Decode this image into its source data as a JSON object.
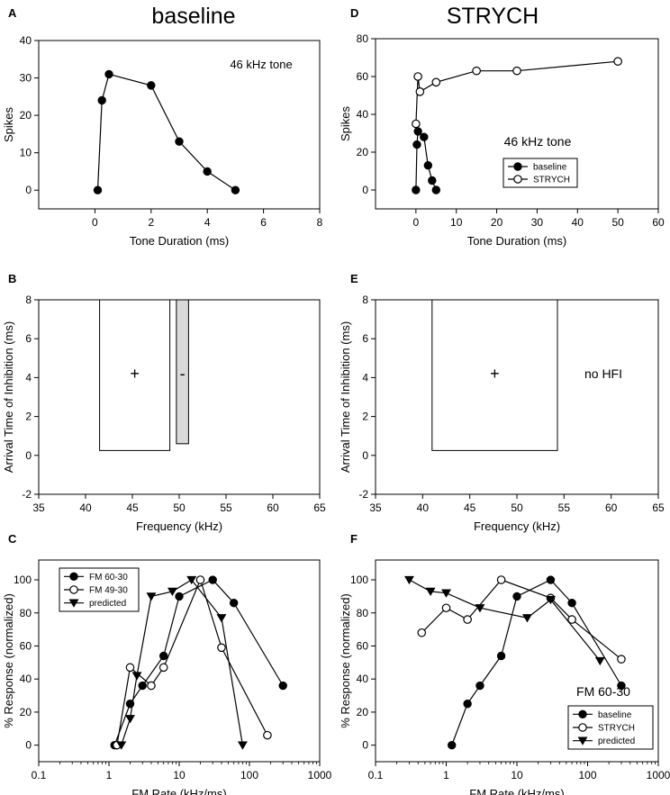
{
  "headers": {
    "left": "baseline",
    "right": "STRYCH"
  },
  "chart_data": [
    {
      "id": "A",
      "panel_label": "A",
      "type": "line",
      "xlabel": "Tone Duration (ms)",
      "ylabel": "Spikes",
      "xlim": [
        -2,
        8
      ],
      "ylim": [
        -5,
        40
      ],
      "xticks": [
        0,
        2,
        4,
        6,
        8
      ],
      "yticks": [
        0,
        10,
        20,
        30,
        40
      ],
      "annotation": "46 kHz tone",
      "series": [
        {
          "name": "baseline",
          "marker": "filled-circle",
          "x": [
            0.1,
            0.25,
            0.5,
            2,
            3,
            4,
            5
          ],
          "y": [
            0,
            24,
            31,
            28,
            13,
            5,
            0
          ]
        }
      ]
    },
    {
      "id": "D",
      "panel_label": "D",
      "type": "line",
      "xlabel": "Tone Duration (ms)",
      "ylabel": "Spikes",
      "xlim": [
        -10,
        60
      ],
      "ylim": [
        -10,
        80
      ],
      "xticks": [
        0,
        10,
        20,
        30,
        40,
        50,
        60
      ],
      "yticks": [
        0,
        20,
        40,
        60,
        80
      ],
      "annotation": "46 kHz tone",
      "legend": [
        "baseline",
        "STRYCH"
      ],
      "series": [
        {
          "name": "baseline",
          "marker": "filled-circle",
          "x": [
            0,
            0.25,
            0.5,
            2,
            3,
            4,
            5
          ],
          "y": [
            0,
            24,
            31,
            28,
            13,
            5,
            0
          ]
        },
        {
          "name": "STRYCH",
          "marker": "open-circle",
          "x": [
            0,
            0.5,
            1,
            5,
            15,
            25,
            50
          ],
          "y": [
            35,
            60,
            52,
            57,
            63,
            63,
            68
          ]
        }
      ]
    },
    {
      "id": "B",
      "panel_label": "B",
      "type": "rect",
      "xlabel": "Frequency (kHz)",
      "ylabel": "Arrival Time of Inhibition (ms)",
      "xlim": [
        35,
        65
      ],
      "ylim": [
        -2,
        8
      ],
      "xticks": [
        35,
        40,
        45,
        50,
        55,
        60,
        65
      ],
      "yticks": [
        -2,
        0,
        2,
        4,
        6,
        8
      ],
      "rects": [
        {
          "name": "excitatory",
          "x0": 41.5,
          "x1": 49,
          "y0": 0.25,
          "y1": 8,
          "fill": "#ffffff",
          "label": "+"
        },
        {
          "name": "inhibitory",
          "x0": 49.7,
          "x1": 51,
          "y0": 0.6,
          "y1": 8,
          "fill": "#d9d9d9",
          "label": "-"
        }
      ]
    },
    {
      "id": "E",
      "panel_label": "E",
      "type": "rect",
      "xlabel": "Frequency (kHz)",
      "ylabel": "Arrival Time of Inhibition (ms)",
      "xlim": [
        35,
        65
      ],
      "ylim": [
        -2,
        8
      ],
      "xticks": [
        35,
        40,
        45,
        50,
        55,
        60,
        65
      ],
      "yticks": [
        -2,
        0,
        2,
        4,
        6,
        8
      ],
      "annotation": "no HFI",
      "rects": [
        {
          "name": "excitatory",
          "x0": 41,
          "x1": 54.3,
          "y0": 0.25,
          "y1": 8,
          "fill": "#ffffff",
          "label": "+"
        }
      ]
    },
    {
      "id": "C",
      "panel_label": "C",
      "type": "line",
      "xscale": "log",
      "xlabel": "FM Rate (kHz/ms)",
      "ylabel": "% Response (normalized)",
      "xlim": [
        0.1,
        1000
      ],
      "ylim": [
        -10,
        112
      ],
      "xticks": [
        0.1,
        1,
        10,
        100,
        1000
      ],
      "xtick_labels": [
        "0.1",
        "1",
        "10",
        "100",
        "1000"
      ],
      "yticks": [
        0,
        20,
        40,
        60,
        80,
        100
      ],
      "legend": [
        "FM 60-30",
        "FM 49-30",
        "predicted"
      ],
      "series": [
        {
          "name": "FM 60-30",
          "marker": "filled-circle",
          "x": [
            1.2,
            2,
            3,
            6,
            10,
            30,
            60,
            300
          ],
          "y": [
            0,
            25,
            36,
            54,
            90,
            100,
            86,
            36
          ]
        },
        {
          "name": "FM 49-30",
          "marker": "open-circle",
          "x": [
            1.3,
            2,
            4,
            6,
            20,
            40,
            180
          ],
          "y": [
            0,
            47,
            36,
            47,
            100,
            59,
            6
          ]
        },
        {
          "name": "predicted",
          "marker": "filled-triangle-down",
          "x": [
            1.5,
            2,
            2.5,
            4,
            8,
            15,
            40,
            80
          ],
          "y": [
            0,
            16,
            42,
            90,
            93,
            100,
            77,
            0
          ]
        }
      ]
    },
    {
      "id": "F",
      "panel_label": "F",
      "type": "line",
      "xscale": "log",
      "xlabel": "FM Rate (kHz/ms)",
      "ylabel": "% Response (normalized)",
      "xlim": [
        0.1,
        1000
      ],
      "ylim": [
        -10,
        112
      ],
      "xticks": [
        0.1,
        1,
        10,
        100,
        1000
      ],
      "xtick_labels": [
        "0.1",
        "1",
        "10",
        "100",
        "1000"
      ],
      "yticks": [
        0,
        20,
        40,
        60,
        80,
        100
      ],
      "annotation": "FM 60-30",
      "legend": [
        "baseline",
        "STRYCH",
        "predicted"
      ],
      "series": [
        {
          "name": "baseline",
          "marker": "filled-circle",
          "x": [
            1.2,
            2,
            3,
            6,
            10,
            30,
            60,
            300
          ],
          "y": [
            0,
            25,
            36,
            54,
            90,
            100,
            86,
            36
          ]
        },
        {
          "name": "STRYCH",
          "marker": "open-circle",
          "x": [
            0.45,
            1,
            2,
            6,
            30,
            60,
            300
          ],
          "y": [
            68,
            83,
            76,
            100,
            89,
            76,
            52
          ]
        },
        {
          "name": "predicted",
          "marker": "filled-triangle-down",
          "x": [
            0.3,
            0.6,
            1,
            3,
            14,
            30,
            150
          ],
          "y": [
            100,
            93,
            92,
            83,
            77,
            88,
            51
          ]
        }
      ]
    }
  ]
}
